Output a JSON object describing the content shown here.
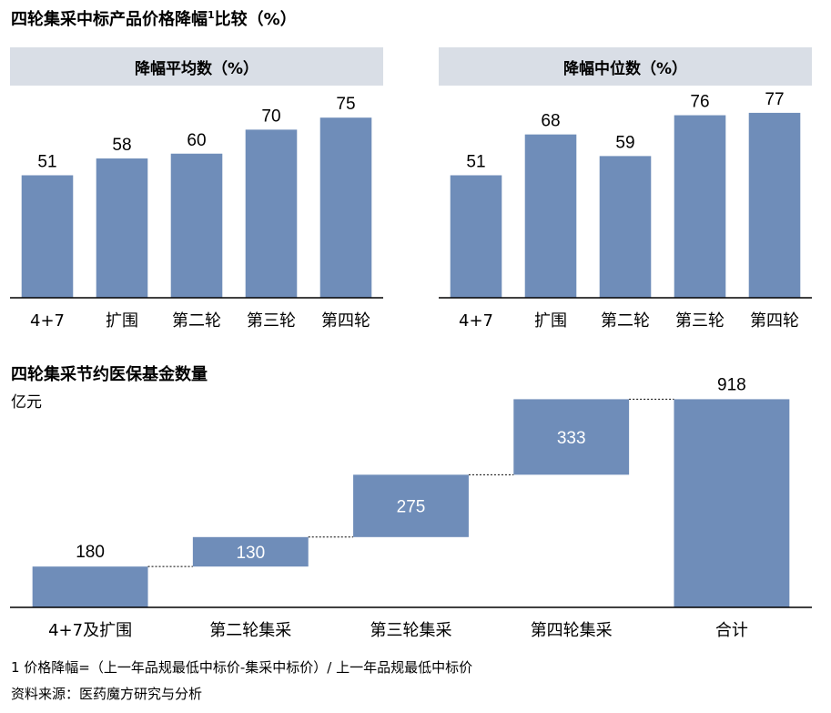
{
  "title": {
    "main": "四轮集采中标产品价格降幅",
    "sup": "1",
    "tail": "比较（%）"
  },
  "section2_title": "四轮集采节约医保基金数量",
  "section2_unit": "亿元",
  "footnote1": "1 价格降幅=（上一年品规最低中标价-集采中标价）/ 上一年品规最低中标价",
  "source": "资料来源：医药魔方研究与分析",
  "colors": {
    "bar": "#6f8db9",
    "header_bg": "#d9dee6",
    "connector": "#000000"
  },
  "chart_data": [
    {
      "type": "bar",
      "title": "降幅平均数（%）",
      "categories": [
        "4+7",
        "扩围",
        "第二轮",
        "第三轮",
        "第四轮"
      ],
      "values": [
        51,
        58,
        60,
        70,
        75
      ],
      "ylim": [
        0,
        80
      ]
    },
    {
      "type": "bar",
      "title": "降幅中位数（%）",
      "categories": [
        "4+7",
        "扩围",
        "第二轮",
        "第三轮",
        "第四轮"
      ],
      "values": [
        51,
        68,
        59,
        76,
        77
      ],
      "ylim": [
        0,
        80
      ]
    },
    {
      "type": "waterfall",
      "title": "四轮集采节约医保基金数量",
      "ylabel": "亿元",
      "categories": [
        "4+7及扩围",
        "第二轮集采",
        "第三轮集采",
        "第四轮集采",
        "合计"
      ],
      "values": [
        180,
        130,
        275,
        333,
        918
      ],
      "total_index": 4,
      "ylim": [
        0,
        1000
      ]
    }
  ]
}
